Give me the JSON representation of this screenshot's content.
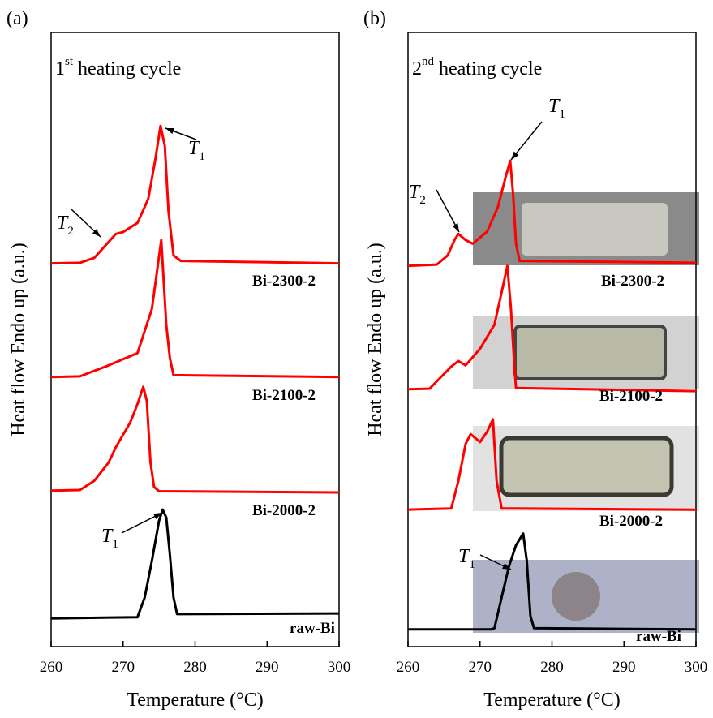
{
  "chart_data": [
    {
      "type": "line",
      "panel_label": "(a)",
      "subtitle": {
        "text": "1",
        "sup": "st",
        "rest": " heating cycle"
      },
      "xlabel": "Temperature (°C)",
      "ylabel": "Heat flow Endo up (a.u.)",
      "xlim": [
        260,
        300
      ],
      "xticks": [
        260,
        270,
        280,
        290,
        300
      ],
      "ylim": [
        0,
        100
      ],
      "annotations": [
        {
          "text": "T",
          "sub": "1"
        },
        {
          "text": "T",
          "sub": "2"
        },
        {
          "text": "T",
          "sub": "1"
        }
      ],
      "series": [
        {
          "name": "Bi-2300-2",
          "color": "#ff0000",
          "x": [
            260,
            264,
            266,
            268,
            269,
            270,
            272,
            273.5,
            274.5,
            275.2,
            275.8,
            276.3,
            277,
            278,
            300
          ],
          "values": [
            62.4,
            62.5,
            63.3,
            65.9,
            67.2,
            67.5,
            69,
            72.9,
            79.5,
            84.8,
            81.5,
            70.9,
            63.7,
            62.8,
            62.4
          ]
        },
        {
          "name": "Bi-2100-2",
          "color": "#ff0000",
          "x": [
            260,
            264,
            268,
            272,
            274,
            275.3,
            276,
            276.5,
            277,
            300
          ],
          "values": [
            43.9,
            44,
            45.8,
            47.8,
            55,
            66.2,
            52.4,
            47,
            44.2,
            43.9
          ]
        },
        {
          "name": "Bi-2000-2",
          "color": "#ff0000",
          "x": [
            260,
            264,
            266,
            268,
            269,
            270,
            271,
            272,
            272.8,
            273.3,
            273.8,
            274.3,
            275,
            300
          ],
          "values": [
            25.4,
            25.5,
            27,
            30,
            32.5,
            34.5,
            36.5,
            39.5,
            42.3,
            40,
            30,
            26,
            25.3,
            25.1
          ]
        },
        {
          "name": "raw-Bi",
          "color": "#000000",
          "x": [
            260,
            272,
            273,
            274,
            275,
            275.5,
            276,
            276.5,
            277,
            277.5,
            300
          ],
          "values": [
            4.6,
            4.8,
            8,
            14,
            20.5,
            22.3,
            21,
            15,
            8,
            5.3,
            5.4
          ]
        }
      ]
    },
    {
      "type": "line",
      "panel_label": "(b)",
      "subtitle": {
        "text": "2",
        "sup": "nd",
        "rest": " heating cycle"
      },
      "xlabel": "Temperature (°C)",
      "ylabel": "Heat flow Endo up (a.u.)",
      "xlim": [
        260,
        300
      ],
      "xticks": [
        260,
        270,
        280,
        290,
        300
      ],
      "ylim": [
        0,
        100
      ],
      "annotations": [
        {
          "text": "T",
          "sub": "1"
        },
        {
          "text": "T",
          "sub": "2"
        },
        {
          "text": "T",
          "sub": "1"
        }
      ],
      "series": [
        {
          "name": "Bi-2300-2",
          "color": "#ff0000",
          "x": [
            260,
            264,
            265.5,
            266.5,
            267,
            268,
            269,
            271,
            272.5,
            273.5,
            274.2,
            274.6,
            275,
            275.5,
            300
          ],
          "values": [
            62,
            62.2,
            63.7,
            66.3,
            67.2,
            66.2,
            65.6,
            67.6,
            71.6,
            76.2,
            79.1,
            73.6,
            65.6,
            62.8,
            62.5
          ]
        },
        {
          "name": "Bi-2100-2",
          "color": "#ff0000",
          "x": [
            260,
            263,
            264,
            266,
            267,
            268,
            270,
            272,
            273,
            273.8,
            274.3,
            274.7,
            275,
            300
          ],
          "values": [
            41.9,
            42,
            43.2,
            45.6,
            46.5,
            45.8,
            48.5,
            52.4,
            57.7,
            62,
            55,
            47,
            42.1,
            41.6
          ]
        },
        {
          "name": "Bi-2000-2",
          "color": "#ff0000",
          "x": [
            260,
            266,
            267,
            268,
            268.7,
            270,
            271,
            271.8,
            272.3,
            273,
            300
          ],
          "values": [
            22.3,
            22.5,
            27,
            33,
            34.6,
            33.3,
            35,
            37,
            27,
            22.5,
            22.3
          ]
        },
        {
          "name": "raw-Bi",
          "color": "#000000",
          "x": [
            260,
            271.5,
            272,
            273,
            274,
            275,
            276,
            276.5,
            277,
            277.5,
            300
          ],
          "values": [
            2.8,
            2.8,
            3,
            8,
            13,
            16.5,
            18.4,
            14,
            5,
            3,
            2.8
          ]
        }
      ]
    }
  ]
}
